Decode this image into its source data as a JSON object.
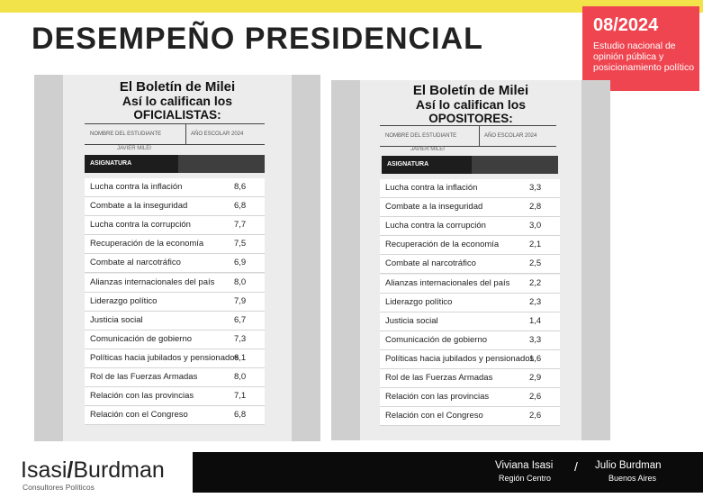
{
  "header": {
    "title": "DESEMPEÑO PRESIDENCIAL",
    "date": "08/2024",
    "description": "Estudio nacional de opinión pública y posicionamiento político"
  },
  "left_card": {
    "line1": "El Boletín de Milei",
    "line2": "Así lo califican los",
    "line3": "OFICIALISTAS:",
    "field_name": "NOMBRE DEL ESTUDIANTE",
    "field_year": "AÑO ESCOLAR 2024",
    "student": "JAVIER MILEI",
    "asignatura": "ASIGNATURA",
    "rows": [
      {
        "subject": "Lucha contra la inflación",
        "grade": "8,6"
      },
      {
        "subject": "Combate a la inseguridad",
        "grade": "6,8"
      },
      {
        "subject": "Lucha contra la corrupción",
        "grade": "7,7"
      },
      {
        "subject": "Recuperación de la economía",
        "grade": "7,5"
      },
      {
        "subject": "Combate al narcotráfico",
        "grade": "6,9"
      },
      {
        "subject": "Alianzas internacionales del país",
        "grade": "8,0"
      },
      {
        "subject": "Liderazgo político",
        "grade": "7,9"
      },
      {
        "subject": "Justicia social",
        "grade": "6,7"
      },
      {
        "subject": "Comunicación de gobierno",
        "grade": "7,3"
      },
      {
        "subject": "Políticas hacia jubilados y pensionados",
        "grade": "6,1"
      },
      {
        "subject": "Rol de las Fuerzas Armadas",
        "grade": "8,0"
      },
      {
        "subject": "Relación con las provincias",
        "grade": "7,1"
      },
      {
        "subject": "Relación con el Congreso",
        "grade": "6,8"
      }
    ]
  },
  "right_card": {
    "line1": "El Boletín de Milei",
    "line2": "Así lo califican los",
    "line3": "OPOSITORES:",
    "field_name": "NOMBRE DEL ESTUDIANTE",
    "field_year": "AÑO ESCOLAR 2024",
    "student": "JAVIER MILEI",
    "asignatura": "ASIGNATURA",
    "rows": [
      {
        "subject": "Lucha contra la inflación",
        "grade": "3,3"
      },
      {
        "subject": "Combate a la inseguridad",
        "grade": "2,8"
      },
      {
        "subject": "Lucha contra la corrupción",
        "grade": "3,0"
      },
      {
        "subject": "Recuperación de la economía",
        "grade": "2,1"
      },
      {
        "subject": "Combate al narcotráfico",
        "grade": "2,5"
      },
      {
        "subject": "Alianzas internacionales del país",
        "grade": "2,2"
      },
      {
        "subject": "Liderazgo político",
        "grade": "2,3"
      },
      {
        "subject": "Justicia social",
        "grade": "1,4"
      },
      {
        "subject": "Comunicación de gobierno",
        "grade": "3,3"
      },
      {
        "subject": "Políticas hacia jubilados y pensionados",
        "grade": "1,6"
      },
      {
        "subject": "Rol de las Fuerzas Armadas",
        "grade": "2,9"
      },
      {
        "subject": "Relación con las provincias",
        "grade": "2,6"
      },
      {
        "subject": "Relación con el Congreso",
        "grade": "2,6"
      }
    ]
  },
  "footer": {
    "logo_left": "Isasi",
    "logo_slash": "/",
    "logo_right": "Burdman",
    "subtitle": "Consultores Políticos",
    "person1": "Viviana Isasi",
    "region1": "Región Centro",
    "separator": "/",
    "person2": "Julio Burdman",
    "region2": "Buenos Aires"
  },
  "colors": {
    "accent_yellow": "#f3e34b",
    "accent_red": "#ef4550"
  }
}
